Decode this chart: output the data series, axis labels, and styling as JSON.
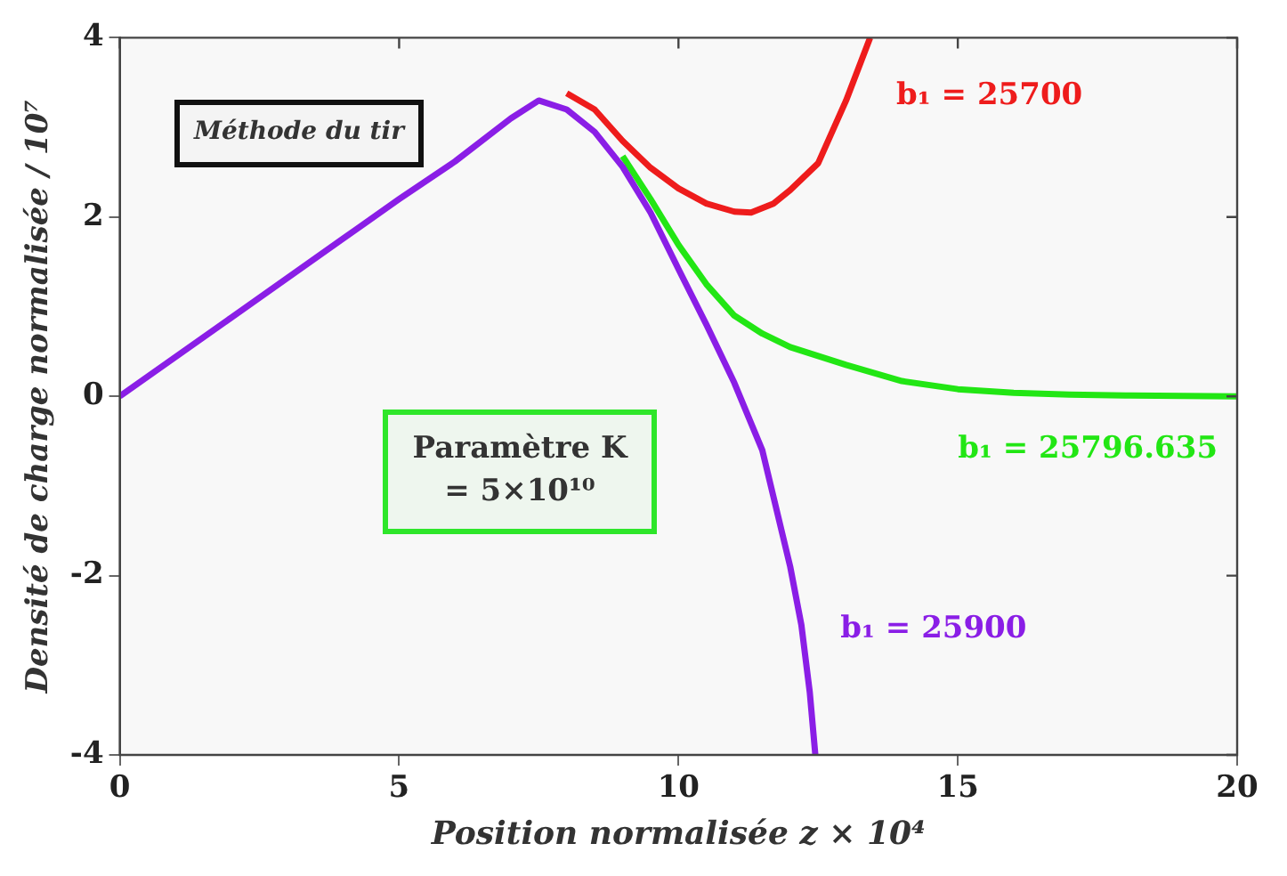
{
  "chart_data": {
    "type": "line",
    "xlabel": "Position normalisée z × 10⁴",
    "ylabel": "Densité de charge normalisée / 10⁷",
    "xlim": [
      0,
      20
    ],
    "xticks": [
      0,
      5,
      10,
      15,
      20
    ],
    "ylim": [
      -4,
      4
    ],
    "yticks": [
      -4,
      -2,
      0,
      2,
      4
    ],
    "grid": false,
    "legend": false,
    "marker": "none",
    "line_style": "solid",
    "annotations": [
      "Méthode du tir",
      "Paramètre K = 5×10¹⁰"
    ],
    "series": [
      {
        "name": "b₁ = 25700",
        "color": "#ee1c1c",
        "x": [
          8,
          8.5,
          9,
          9.5,
          10,
          10.5,
          11,
          11.3,
          11.7,
          12,
          12.5,
          13,
          13.43
        ],
        "values": [
          3.38,
          3.2,
          2.85,
          2.55,
          2.32,
          2.15,
          2.06,
          2.05,
          2.15,
          2.3,
          2.6,
          3.3,
          4
        ]
      },
      {
        "name": "b₁ = 25796.635",
        "color": "#22e614",
        "x": [
          9,
          9.5,
          10,
          10.5,
          11,
          11.5,
          12,
          13,
          14,
          15,
          16,
          17,
          18,
          20
        ],
        "values": [
          2.68,
          2.2,
          1.69,
          1.25,
          0.9,
          0.7,
          0.55,
          0.35,
          0.17,
          0.08,
          0.04,
          0.02,
          0.01,
          0
        ]
      },
      {
        "name": "b₁ = 25900",
        "color": "#8a1ee6",
        "x": [
          0,
          2,
          4,
          5,
          6,
          7,
          7.5,
          8,
          8.5,
          9,
          9.5,
          10,
          10.5,
          11,
          11.5,
          12,
          12.2,
          12.35,
          12.45
        ],
        "values": [
          0,
          0.88,
          1.76,
          2.2,
          2.62,
          3.1,
          3.3,
          3.2,
          2.95,
          2.56,
          2.05,
          1.42,
          0.8,
          0.15,
          -0.6,
          -1.9,
          -2.55,
          -3.3,
          -4
        ]
      }
    ]
  }
}
